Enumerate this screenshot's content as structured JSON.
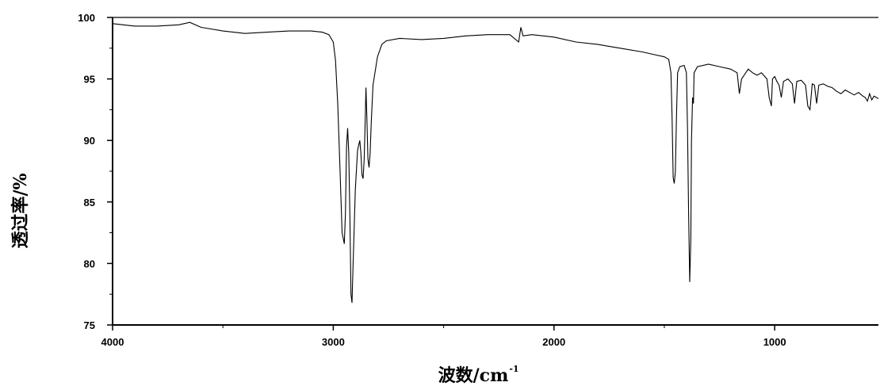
{
  "chart_data": {
    "type": "line",
    "xlabel": "波数/cm",
    "xlabel_superscript": "-1",
    "ylabel": "透过率/%",
    "xlim": [
      4000,
      530
    ],
    "ylim": [
      75,
      100
    ],
    "x_ticks": [
      {
        "value": 4000,
        "label": "4000"
      },
      {
        "value": 3000,
        "label": "3000"
      },
      {
        "value": 2000,
        "label": "2000"
      },
      {
        "value": 1000,
        "label": "1000"
      }
    ],
    "y_ticks": [
      {
        "value": 100,
        "label": "100"
      },
      {
        "value": 95,
        "label": "95"
      },
      {
        "value": 90,
        "label": "90"
      },
      {
        "value": 85,
        "label": "85"
      },
      {
        "value": 80,
        "label": "80"
      },
      {
        "value": 75,
        "label": "75"
      }
    ],
    "grid": false,
    "line_color": "#000000",
    "series": [
      {
        "values": [
          [
            4000,
            99.5
          ],
          [
            3900,
            99.3
          ],
          [
            3800,
            99.3
          ],
          [
            3700,
            99.4
          ],
          [
            3650,
            99.6
          ],
          [
            3600,
            99.2
          ],
          [
            3500,
            98.9
          ],
          [
            3400,
            98.7
          ],
          [
            3300,
            98.8
          ],
          [
            3200,
            98.9
          ],
          [
            3100,
            98.9
          ],
          [
            3050,
            98.8
          ],
          [
            3020,
            98.6
          ],
          [
            3000,
            98.0
          ],
          [
            2990,
            96.5
          ],
          [
            2980,
            93.0
          ],
          [
            2970,
            88.0
          ],
          [
            2960,
            82.5
          ],
          [
            2950,
            81.6
          ],
          [
            2945,
            84.0
          ],
          [
            2940,
            89.5
          ],
          [
            2935,
            91.0
          ],
          [
            2930,
            89.0
          ],
          [
            2925,
            84.0
          ],
          [
            2920,
            77.5
          ],
          [
            2915,
            76.8
          ],
          [
            2910,
            80.0
          ],
          [
            2900,
            86.0
          ],
          [
            2890,
            89.2
          ],
          [
            2880,
            90.0
          ],
          [
            2875,
            89.0
          ],
          [
            2870,
            87.2
          ],
          [
            2865,
            86.9
          ],
          [
            2860,
            88.5
          ],
          [
            2855,
            92.0
          ],
          [
            2852,
            94.3
          ],
          [
            2848,
            92.0
          ],
          [
            2843,
            88.5
          ],
          [
            2838,
            87.8
          ],
          [
            2833,
            89.0
          ],
          [
            2828,
            91.5
          ],
          [
            2820,
            94.5
          ],
          [
            2800,
            96.8
          ],
          [
            2780,
            97.8
          ],
          [
            2760,
            98.1
          ],
          [
            2700,
            98.3
          ],
          [
            2600,
            98.2
          ],
          [
            2500,
            98.3
          ],
          [
            2400,
            98.5
          ],
          [
            2300,
            98.6
          ],
          [
            2200,
            98.6
          ],
          [
            2160,
            98.0
          ],
          [
            2150,
            99.2
          ],
          [
            2140,
            98.5
          ],
          [
            2100,
            98.6
          ],
          [
            2000,
            98.4
          ],
          [
            1900,
            98.0
          ],
          [
            1800,
            97.8
          ],
          [
            1700,
            97.5
          ],
          [
            1600,
            97.2
          ],
          [
            1550,
            97.0
          ],
          [
            1500,
            96.8
          ],
          [
            1480,
            96.6
          ],
          [
            1470,
            95.5
          ],
          [
            1465,
            92.0
          ],
          [
            1460,
            87.0
          ],
          [
            1455,
            86.5
          ],
          [
            1450,
            87.5
          ],
          [
            1445,
            92.0
          ],
          [
            1440,
            95.5
          ],
          [
            1430,
            96.0
          ],
          [
            1410,
            96.1
          ],
          [
            1400,
            95.5
          ],
          [
            1395,
            91.0
          ],
          [
            1390,
            84.0
          ],
          [
            1385,
            78.5
          ],
          [
            1380,
            82.0
          ],
          [
            1377,
            90.0
          ],
          [
            1372,
            93.5
          ],
          [
            1368,
            93.0
          ],
          [
            1365,
            95.5
          ],
          [
            1350,
            96.0
          ],
          [
            1300,
            96.2
          ],
          [
            1250,
            96.0
          ],
          [
            1200,
            95.8
          ],
          [
            1170,
            95.5
          ],
          [
            1160,
            93.8
          ],
          [
            1150,
            95.0
          ],
          [
            1120,
            95.8
          ],
          [
            1100,
            95.5
          ],
          [
            1080,
            95.3
          ],
          [
            1060,
            95.5
          ],
          [
            1050,
            95.3
          ],
          [
            1035,
            95.0
          ],
          [
            1025,
            93.5
          ],
          [
            1015,
            92.8
          ],
          [
            1010,
            95.0
          ],
          [
            1000,
            95.2
          ],
          [
            990,
            94.8
          ],
          [
            980,
            94.5
          ],
          [
            970,
            93.5
          ],
          [
            960,
            94.8
          ],
          [
            940,
            95.0
          ],
          [
            920,
            94.6
          ],
          [
            910,
            93.0
          ],
          [
            900,
            94.8
          ],
          [
            880,
            94.9
          ],
          [
            860,
            94.5
          ],
          [
            850,
            92.8
          ],
          [
            840,
            92.5
          ],
          [
            830,
            94.6
          ],
          [
            820,
            94.5
          ],
          [
            810,
            93.0
          ],
          [
            800,
            94.5
          ],
          [
            780,
            94.6
          ],
          [
            760,
            94.4
          ],
          [
            740,
            94.3
          ],
          [
            720,
            94.0
          ],
          [
            700,
            93.8
          ],
          [
            680,
            94.1
          ],
          [
            660,
            93.9
          ],
          [
            640,
            93.7
          ],
          [
            620,
            93.9
          ],
          [
            600,
            93.6
          ],
          [
            590,
            93.5
          ],
          [
            580,
            93.2
          ],
          [
            570,
            93.8
          ],
          [
            560,
            93.3
          ],
          [
            550,
            93.6
          ],
          [
            540,
            93.5
          ],
          [
            530,
            93.4
          ]
        ]
      }
    ]
  }
}
